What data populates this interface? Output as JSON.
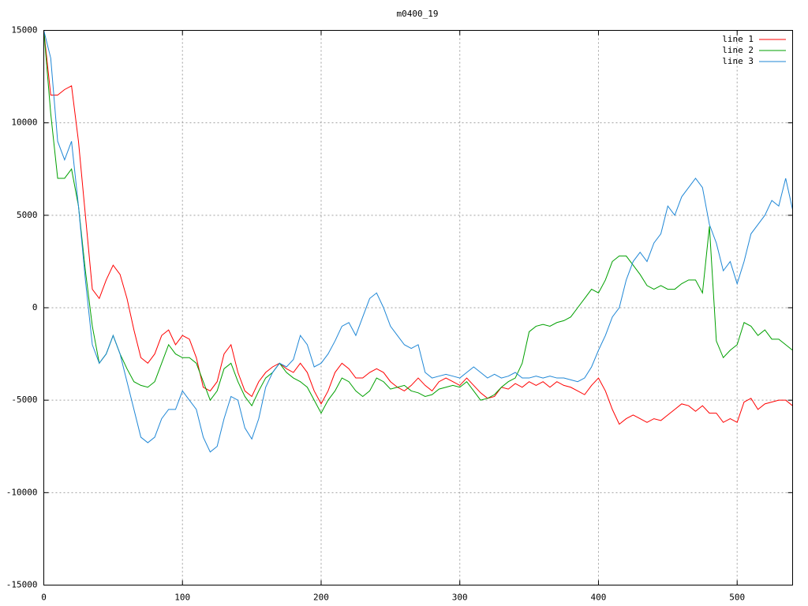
{
  "chart_data": {
    "type": "line",
    "title": "m0400_19",
    "x": [
      0,
      5,
      10,
      15,
      20,
      25,
      30,
      35,
      40,
      45,
      50,
      55,
      60,
      65,
      70,
      75,
      80,
      85,
      90,
      95,
      100,
      105,
      110,
      115,
      120,
      125,
      130,
      135,
      140,
      145,
      150,
      155,
      160,
      165,
      170,
      175,
      180,
      185,
      190,
      195,
      200,
      205,
      210,
      215,
      220,
      225,
      230,
      235,
      240,
      245,
      250,
      255,
      260,
      265,
      270,
      275,
      280,
      285,
      290,
      295,
      300,
      305,
      310,
      315,
      320,
      325,
      330,
      335,
      340,
      345,
      350,
      355,
      360,
      365,
      370,
      375,
      380,
      385,
      390,
      395,
      400,
      405,
      410,
      415,
      420,
      425,
      430,
      435,
      440,
      445,
      450,
      455,
      460,
      465,
      470,
      475,
      480,
      485,
      490,
      495,
      500,
      505,
      510,
      515,
      520,
      525,
      530,
      535,
      540
    ],
    "series": [
      {
        "name": "line 1",
        "color": "#ff0000",
        "values": [
          15000,
          11500,
          11500,
          11800,
          12000,
          9000,
          5000,
          1000,
          500,
          1500,
          2300,
          1800,
          500,
          -1200,
          -2700,
          -3000,
          -2500,
          -1500,
          -1200,
          -2000,
          -1500,
          -1700,
          -2700,
          -4300,
          -4500,
          -4000,
          -2500,
          -2000,
          -3500,
          -4500,
          -4800,
          -4000,
          -3500,
          -3200,
          -3000,
          -3300,
          -3500,
          -3000,
          -3500,
          -4500,
          -5200,
          -4500,
          -3500,
          -3000,
          -3300,
          -3800,
          -3800,
          -3500,
          -3300,
          -3500,
          -4000,
          -4300,
          -4500,
          -4200,
          -3800,
          -4200,
          -4500,
          -4000,
          -3800,
          -4000,
          -4200,
          -3800,
          -4200,
          -4600,
          -4900,
          -4800,
          -4300,
          -4400,
          -4100,
          -4300,
          -4000,
          -4200,
          -4000,
          -4300,
          -4000,
          -4200,
          -4300,
          -4500,
          -4700,
          -4200,
          -3800,
          -4500,
          -5500,
          -6300,
          -6000,
          -5800,
          -6000,
          -6200,
          -6000,
          -6100,
          -5800,
          -5500,
          -5200,
          -5300,
          -5600,
          -5300,
          -5700,
          -5700,
          -6200,
          -6000,
          -6200,
          -5100,
          -4900,
          -5500,
          -5200,
          -5100,
          -5000,
          -5000,
          -5300
        ]
      },
      {
        "name": "line 2",
        "color": "#00a000",
        "values": [
          15000,
          10500,
          7000,
          7000,
          7500,
          5500,
          2000,
          -1000,
          -3000,
          -2500,
          -1500,
          -2500,
          -3300,
          -4000,
          -4200,
          -4300,
          -4000,
          -3000,
          -2000,
          -2500,
          -2700,
          -2700,
          -3000,
          -4000,
          -5000,
          -4500,
          -3300,
          -3000,
          -4000,
          -4800,
          -5300,
          -4500,
          -3800,
          -3500,
          -3000,
          -3500,
          -3800,
          -4000,
          -4300,
          -5000,
          -5700,
          -5000,
          -4500,
          -3800,
          -4000,
          -4500,
          -4800,
          -4500,
          -3800,
          -4000,
          -4400,
          -4300,
          -4200,
          -4500,
          -4600,
          -4800,
          -4700,
          -4400,
          -4300,
          -4200,
          -4300,
          -4000,
          -4500,
          -5000,
          -4900,
          -4700,
          -4300,
          -4000,
          -3800,
          -3000,
          -1300,
          -1000,
          -900,
          -1000,
          -800,
          -700,
          -500,
          0,
          500,
          1000,
          800,
          1500,
          2500,
          2800,
          2800,
          2300,
          1800,
          1200,
          1000,
          1200,
          1000,
          1000,
          1300,
          1500,
          1500,
          800,
          4400,
          -1800,
          -2700,
          -2300,
          -2000,
          -800,
          -1000,
          -1500,
          -1200,
          -1700,
          -1700,
          -2000,
          -2300
        ]
      },
      {
        "name": "line 3",
        "color": "#1f87d6",
        "values": [
          15000,
          13500,
          9000,
          8000,
          9000,
          5500,
          1500,
          -2000,
          -3000,
          -2500,
          -1500,
          -2500,
          -4000,
          -5500,
          -7000,
          -7300,
          -7000,
          -6000,
          -5500,
          -5500,
          -4500,
          -5000,
          -5500,
          -7000,
          -7800,
          -7500,
          -6000,
          -4800,
          -5000,
          -6500,
          -7100,
          -6000,
          -4300,
          -3500,
          -3000,
          -3200,
          -2800,
          -1500,
          -2000,
          -3200,
          -3000,
          -2500,
          -1800,
          -1000,
          -800,
          -1500,
          -500,
          500,
          800,
          0,
          -1000,
          -1500,
          -2000,
          -2200,
          -2000,
          -3500,
          -3800,
          -3700,
          -3600,
          -3700,
          -3800,
          -3500,
          -3200,
          -3500,
          -3800,
          -3600,
          -3800,
          -3700,
          -3500,
          -3800,
          -3800,
          -3700,
          -3800,
          -3700,
          -3800,
          -3800,
          -3900,
          -4000,
          -3800,
          -3200,
          -2300,
          -1500,
          -500,
          0,
          1500,
          2500,
          3000,
          2500,
          3500,
          4000,
          5500,
          5000,
          6000,
          6500,
          7000,
          6500,
          4500,
          3500,
          2000,
          2500,
          1300,
          2500,
          4000,
          4500,
          5000,
          5800,
          5500,
          7000,
          5300
        ]
      }
    ],
    "xlim": [
      0,
      540
    ],
    "ylim": [
      -15000,
      15000
    ],
    "xticks": [
      0,
      100,
      200,
      300,
      400,
      500
    ],
    "yticks": [
      -15000,
      -10000,
      -5000,
      0,
      5000,
      10000,
      15000
    ],
    "grid": true,
    "legend": "top-right"
  }
}
